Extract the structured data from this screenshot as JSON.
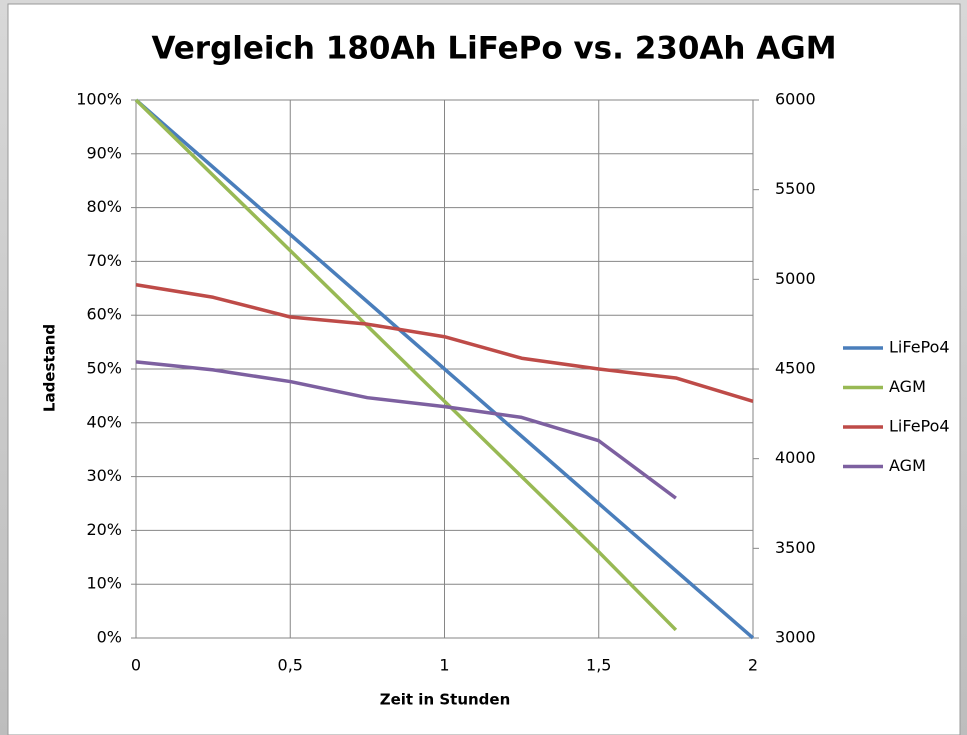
{
  "chart_data": {
    "type": "line",
    "title": "Vergleich 180Ah LiFePo vs. 230Ah AGM",
    "ylabel": "Ladestand",
    "xlabel": "Zeit in Stunden",
    "x": [
      0,
      0.25,
      0.5,
      0.75,
      1,
      1.25,
      1.5,
      1.75,
      2
    ],
    "xlim": [
      0,
      2
    ],
    "xticks": [
      0,
      {
        "value": 0.5,
        "label": "0,5"
      },
      1,
      {
        "value": 1.5,
        "label": "1,5"
      },
      2
    ],
    "ylim": [
      0,
      100
    ],
    "yticks": [
      {
        "value": 0,
        "label": "0%"
      },
      {
        "value": 10,
        "label": "10%"
      },
      {
        "value": 20,
        "label": "20%"
      },
      {
        "value": 30,
        "label": "30%"
      },
      {
        "value": 40,
        "label": "40%"
      },
      {
        "value": 50,
        "label": "50%"
      },
      {
        "value": 60,
        "label": "60%"
      },
      {
        "value": 70,
        "label": "70%"
      },
      {
        "value": 80,
        "label": "80%"
      },
      {
        "value": 90,
        "label": "90%"
      },
      {
        "value": 100,
        "label": "100%"
      }
    ],
    "y2lim": [
      3000,
      6000
    ],
    "y2ticks": [
      3000,
      3500,
      4000,
      4500,
      5000,
      5500,
      6000
    ],
    "grid": true,
    "legend": "right",
    "series": [
      {
        "name": "LiFePo4",
        "color": "#4a7ebb",
        "values": [
          100,
          87.5,
          75,
          62.5,
          50,
          37.5,
          25,
          12.5,
          0
        ]
      },
      {
        "name": "AGM",
        "color": "#98b954",
        "values": [
          100,
          86,
          72,
          58,
          44,
          30,
          16,
          1.5,
          null
        ]
      },
      {
        "name": "LiFePo4",
        "color": "#be4b48",
        "axis": "y2",
        "values": [
          4970,
          4900,
          4790,
          4750,
          4680,
          4560,
          4500,
          4450,
          4320
        ]
      },
      {
        "name": "AGM",
        "color": "#7d60a0",
        "axis": "y2",
        "values": [
          4540,
          4495,
          4430,
          4340,
          4290,
          4230,
          4100,
          3780,
          null
        ]
      }
    ]
  }
}
